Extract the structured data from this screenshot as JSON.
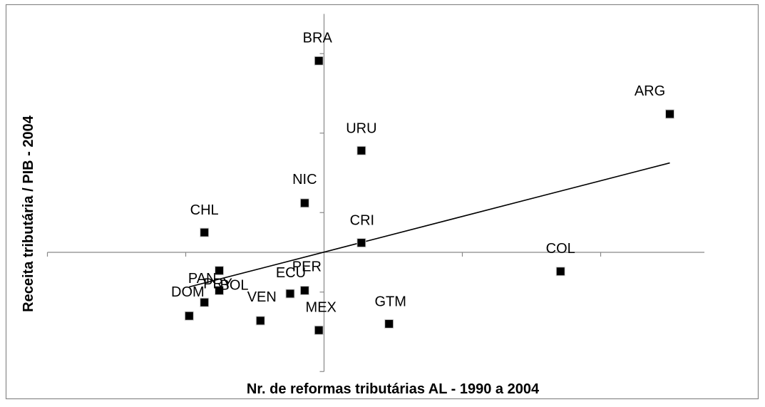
{
  "chart_data": {
    "type": "scatter",
    "title": "",
    "xlabel": "Nr. de reformas tributárias AL - 1990 a 2004",
    "ylabel": "Receita tributária / PIB - 2004",
    "xlim": [
      -8,
      11
    ],
    "ylim": [
      -15,
      30
    ],
    "grid": false,
    "legend": "none",
    "marker_color": "#000000",
    "points": [
      {
        "label": "BRA",
        "x": -0.15,
        "y": 24.1
      },
      {
        "label": "ARG",
        "x": 10.0,
        "y": 17.4
      },
      {
        "label": "URU",
        "x": 1.08,
        "y": 12.8
      },
      {
        "label": "NIC",
        "x": -0.56,
        "y": 6.2
      },
      {
        "label": "CHL",
        "x": -3.46,
        "y": 2.5
      },
      {
        "label": "CRI",
        "x": 1.08,
        "y": 1.2
      },
      {
        "label": "BOL",
        "x": -3.03,
        "y": -2.3
      },
      {
        "label": "PRY",
        "x": -3.03,
        "y": -4.8
      },
      {
        "label": "PAN",
        "x": -3.46,
        "y": -6.3
      },
      {
        "label": "DOM",
        "x": -3.9,
        "y": -8.0
      },
      {
        "label": "ECU",
        "x": -0.98,
        "y": -5.2
      },
      {
        "label": "PER",
        "x": -0.56,
        "y": -4.8
      },
      {
        "label": "VEN",
        "x": -1.84,
        "y": -8.6
      },
      {
        "label": "MEX",
        "x": -0.15,
        "y": -9.8
      },
      {
        "label": "GTM",
        "x": 1.88,
        "y": -9.0
      },
      {
        "label": "COL",
        "x": 6.84,
        "y": -2.4
      }
    ],
    "trendline": {
      "x": [
        -3.9,
        10.0
      ],
      "y": [
        -4.35,
        11.25
      ]
    }
  }
}
